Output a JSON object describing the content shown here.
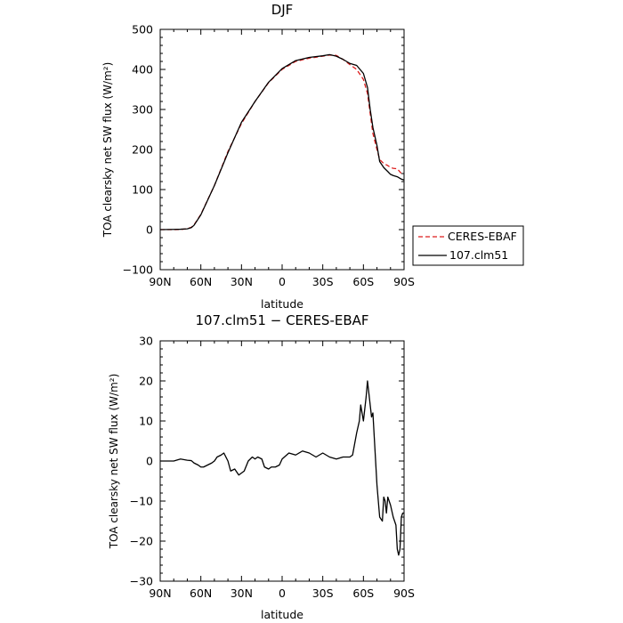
{
  "chart_data": [
    {
      "type": "line",
      "title": "DJF",
      "xlabel": "latitude",
      "ylabel": "TOA clearsky net SW flux (W/m²)",
      "xticks": [
        "90N",
        "60N",
        "30N",
        "0",
        "30S",
        "60S",
        "90S"
      ],
      "xlim": [
        90,
        -90
      ],
      "ylim": [
        -100,
        500
      ],
      "yticks": [
        -100,
        0,
        100,
        200,
        300,
        400,
        500
      ],
      "legend_position": "right",
      "x": [
        90,
        80,
        75,
        70,
        67,
        65,
        60,
        50,
        40,
        30,
        20,
        10,
        0,
        -10,
        -20,
        -30,
        -35,
        -40,
        -45,
        -50,
        -55,
        -60,
        -63,
        -65,
        -67,
        -70,
        -72,
        -75,
        -78,
        -80,
        -82,
        -85,
        -88,
        -90
      ],
      "series": [
        {
          "name": "CERES-EBAF",
          "color": "#dd1c1c",
          "dash": true,
          "values": [
            0,
            0,
            0.5,
            2,
            6,
            12,
            38,
            110,
            195,
            265,
            320,
            367,
            400,
            420,
            428,
            433,
            436,
            435,
            425,
            412,
            400,
            375,
            340,
            290,
            240,
            200,
            175,
            165,
            160,
            155,
            153,
            152,
            140,
            138
          ]
        },
        {
          "name": "107.clm51",
          "color": "#000000",
          "dash": false,
          "values": [
            0,
            0.5,
            1,
            2,
            5,
            11,
            37,
            110,
            192,
            268,
            320,
            368,
            402,
            422,
            430,
            434,
            437,
            433,
            425,
            415,
            410,
            390,
            355,
            300,
            255,
            210,
            170,
            155,
            145,
            138,
            135,
            132,
            126,
            124
          ]
        }
      ]
    },
    {
      "type": "line",
      "title": "107.clm51 − CERES-EBAF",
      "xlabel": "latitude",
      "ylabel": "TOA clearsky net SW flux (W/m²)",
      "xticks": [
        "90N",
        "60N",
        "30N",
        "0",
        "30S",
        "60S",
        "90S"
      ],
      "xlim": [
        90,
        -90
      ],
      "ylim": [
        -30,
        30
      ],
      "yticks": [
        -30,
        -20,
        -10,
        0,
        10,
        20,
        30
      ],
      "x": [
        90,
        80,
        75,
        70,
        67,
        65,
        62,
        60,
        58,
        55,
        52,
        50,
        48,
        45,
        43,
        40,
        38,
        35,
        32,
        30,
        28,
        25,
        22,
        20,
        18,
        15,
        13,
        10,
        8,
        5,
        2,
        0,
        -5,
        -10,
        -15,
        -20,
        -25,
        -30,
        -35,
        -40,
        -45,
        -50,
        -52,
        -55,
        -57,
        -58,
        -60,
        -62,
        -63,
        -64,
        -65,
        -66,
        -67,
        -68,
        -70,
        -72,
        -74,
        -75,
        -76,
        -77,
        -78,
        -80,
        -82,
        -84,
        -85,
        -86,
        -87,
        -88,
        -89,
        -90
      ],
      "series": [
        {
          "name": "107.clm51",
          "color": "#000000",
          "values": [
            0,
            0,
            0.5,
            0.2,
            0.1,
            -0.5,
            -1,
            -1.5,
            -1.5,
            -1,
            -0.5,
            0,
            1,
            1.5,
            2,
            0,
            -2.5,
            -2,
            -3.5,
            -3,
            -2.5,
            0,
            1,
            0.5,
            1,
            0.5,
            -1.5,
            -2,
            -1.5,
            -1.5,
            -1,
            0.5,
            2,
            1.5,
            2.5,
            2,
            1,
            2,
            1,
            0.5,
            1,
            1,
            1.5,
            7,
            10,
            14,
            10,
            16,
            20,
            17,
            14,
            11,
            12,
            6,
            -6,
            -14,
            -15,
            -9,
            -10,
            -13,
            -9,
            -11,
            -14,
            -16,
            -22,
            -23.5,
            -22,
            -14,
            -13,
            -13
          ]
        }
      ]
    }
  ]
}
